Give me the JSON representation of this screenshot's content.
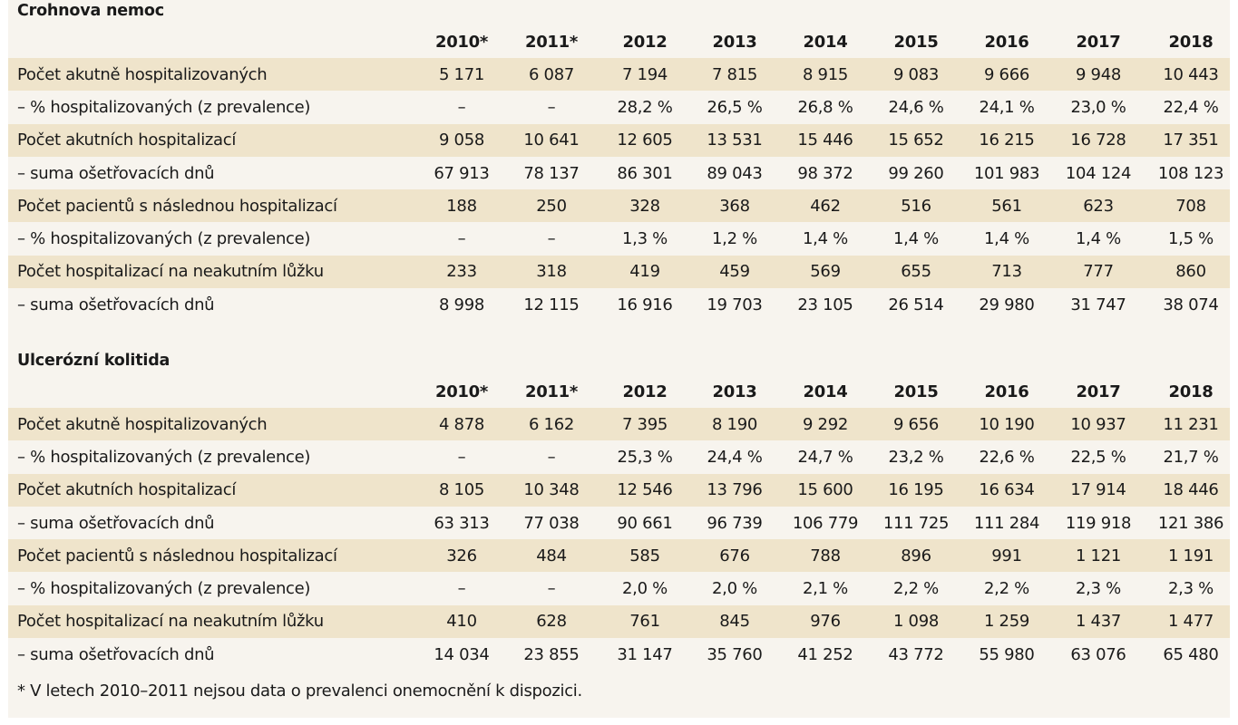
{
  "years": [
    "2010*",
    "2011*",
    "2012",
    "2013",
    "2014",
    "2015",
    "2016",
    "2017",
    "2018"
  ],
  "sections": [
    {
      "title": "Crohnova nemoc",
      "rows": [
        {
          "label": "Počet akutně hospitalizovaných",
          "values": [
            "5 171",
            "6 087",
            "7 194",
            "7 815",
            "8 915",
            "9 083",
            "9 666",
            "9 948",
            "10 443"
          ]
        },
        {
          "label": "–  % hospitalizovaných (z prevalence)",
          "values": [
            "–",
            "–",
            "28,2 %",
            "26,5 %",
            "26,8 %",
            "24,6 %",
            "24,1 %",
            "23,0 %",
            "22,4 %"
          ]
        },
        {
          "label": "Počet akutních hospitalizací",
          "values": [
            "9 058",
            "10 641",
            "12 605",
            "13 531",
            "15 446",
            "15 652",
            "16 215",
            "16 728",
            "17 351"
          ]
        },
        {
          "label": "– suma ošetřovacích dnů",
          "values": [
            "67 913",
            "78 137",
            "86 301",
            "89 043",
            "98 372",
            "99 260",
            "101 983",
            "104 124",
            "108 123"
          ]
        },
        {
          "label": "Počet pacientů s následnou hospitalizací",
          "values": [
            "188",
            "250",
            "328",
            "368",
            "462",
            "516",
            "561",
            "623",
            "708"
          ]
        },
        {
          "label": "–  % hospitalizovaných (z prevalence)",
          "values": [
            "–",
            "–",
            "1,3 %",
            "1,2 %",
            "1,4 %",
            "1,4 %",
            "1,4 %",
            "1,4 %",
            "1,5 %"
          ]
        },
        {
          "label": "Počet hospitalizací na neakutním lůžku",
          "values": [
            "233",
            "318",
            "419",
            "459",
            "569",
            "655",
            "713",
            "777",
            "860"
          ]
        },
        {
          "label": "– suma ošetřovacích dnů",
          "values": [
            "8 998",
            "12 115",
            "16 916",
            "19 703",
            "23 105",
            "26 514",
            "29 980",
            "31 747",
            "38 074"
          ]
        }
      ]
    },
    {
      "title": "Ulcerózní kolitida",
      "rows": [
        {
          "label": "Počet akutně hospitalizovaných",
          "values": [
            "4 878",
            "6 162",
            "7 395",
            "8 190",
            "9 292",
            "9 656",
            "10 190",
            "10 937",
            "11 231"
          ]
        },
        {
          "label": "–  % hospitalizovaných (z prevalence)",
          "values": [
            "–",
            "–",
            "25,3 %",
            "24,4 %",
            "24,7 %",
            "23,2 %",
            "22,6 %",
            "22,5 %",
            "21,7 %"
          ]
        },
        {
          "label": "Počet akutních hospitalizací",
          "values": [
            "8 105",
            "10 348",
            "12 546",
            "13 796",
            "15 600",
            "16 195",
            "16 634",
            "17 914",
            "18 446"
          ]
        },
        {
          "label": "– suma ošetřovacích dnů",
          "values": [
            "63 313",
            "77 038",
            "90 661",
            "96 739",
            "106 779",
            "111 725",
            "111 284",
            "119 918",
            "121 386"
          ]
        },
        {
          "label": "Počet pacientů s následnou hospitalizací",
          "values": [
            "326",
            "484",
            "585",
            "676",
            "788",
            "896",
            "991",
            "1 121",
            "1 191"
          ]
        },
        {
          "label": "–  % hospitalizovaných (z prevalence)",
          "values": [
            "–",
            "–",
            "2,0 %",
            "2,0 %",
            "2,1 %",
            "2,2 %",
            "2,2 %",
            "2,3 %",
            "2,3 %"
          ]
        },
        {
          "label": "Počet hospitalizací na neakutním lůžku",
          "values": [
            "410",
            "628",
            "761",
            "845",
            "976",
            "1 098",
            "1 259",
            "1 437",
            "1 477"
          ]
        },
        {
          "label": "– suma ošetřovacích dnů",
          "values": [
            "14 034",
            "23 855",
            "31 147",
            "35 760",
            "41 252",
            "43 772",
            "55 980",
            "63 076",
            "65 480"
          ]
        }
      ]
    }
  ],
  "footnote": "* V letech 2010–2011 nejsou data o prevalenci onemocnění k dispozici.",
  "colors": {
    "page": "#f7f4ee",
    "shaded_row": "#efe4cb",
    "text": "#1a1a1a"
  }
}
